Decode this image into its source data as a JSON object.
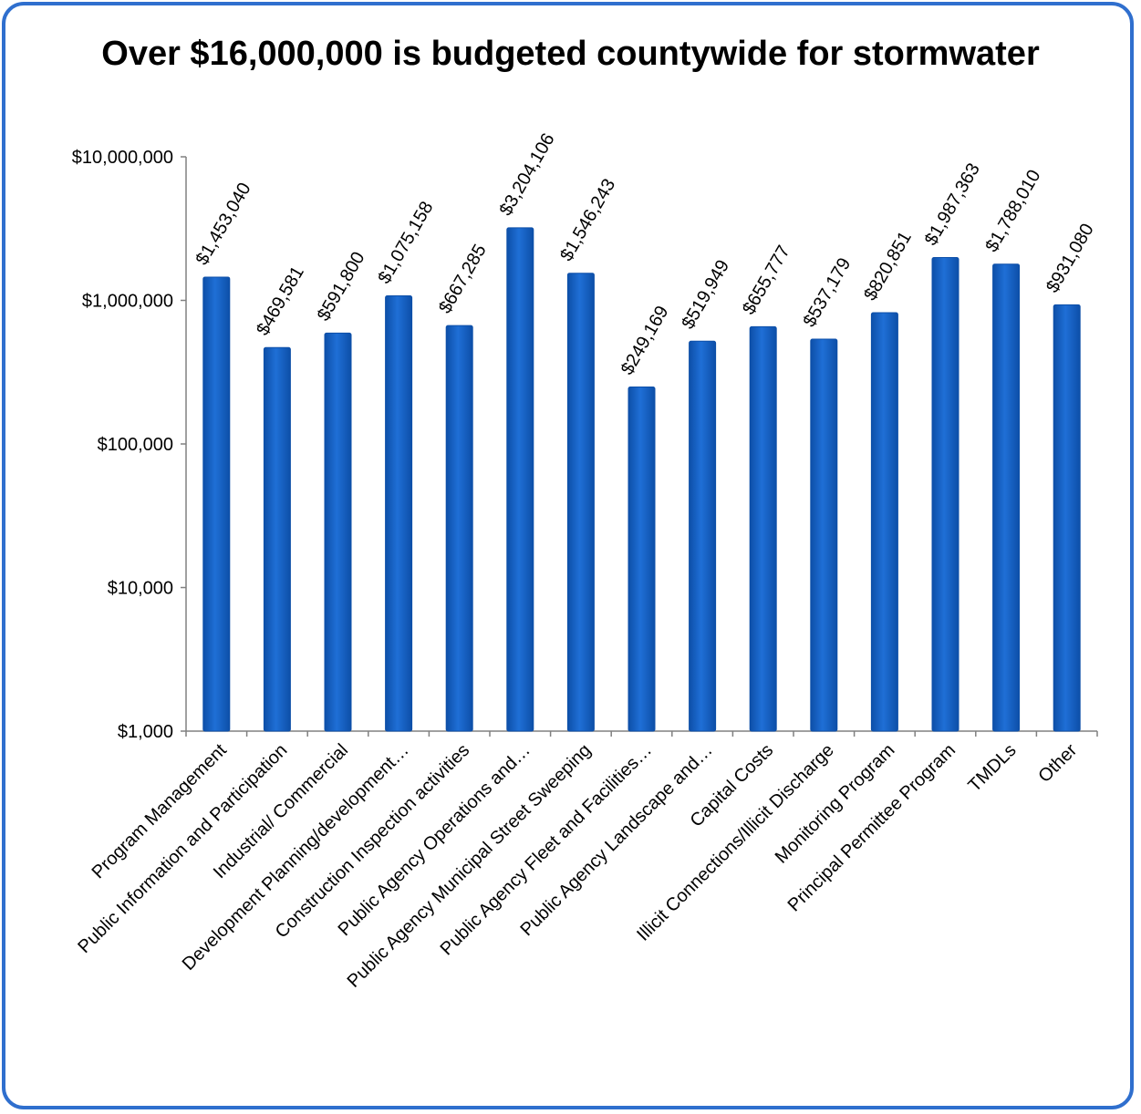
{
  "chart_data": {
    "type": "bar",
    "title": "Over $16,000,000 is budgeted countywide for stormwater",
    "xlabel": "",
    "ylabel": "",
    "yscale": "log",
    "ylim": [
      1000,
      10000000
    ],
    "yticks": [
      {
        "value": 1000,
        "label": "$1,000"
      },
      {
        "value": 10000,
        "label": "$10,000"
      },
      {
        "value": 100000,
        "label": "$100,000"
      },
      {
        "value": 1000000,
        "label": "$1,000,000"
      },
      {
        "value": 10000000,
        "label": "$10,000,000"
      }
    ],
    "categories": [
      "Program Management",
      "Public Information and Participation",
      "Industrial/ Commercial",
      "Development Planning/development…",
      "Construction Inspection activities",
      "Public Agency Operations and…",
      "Public Agency Municipal Street Sweeping",
      "Public Agency Fleet and Facilities…",
      "Public Agency Landscape and…",
      "Capital Costs",
      "Illicit Connections/Illicit Discharge",
      "Monitoring Program",
      "Principal Permittee Program",
      "TMDLs",
      "Other"
    ],
    "values": [
      1453040,
      469581,
      591800,
      1075158,
      667285,
      3204106,
      1546243,
      249169,
      519949,
      655777,
      537179,
      820851,
      1987363,
      1788010,
      931080
    ],
    "value_labels": [
      "$1,453,040",
      "$469,581",
      "$591,800",
      "$1,075,158",
      "$667,285",
      "$3,204,106",
      "$1,546,243",
      "$249,169",
      "$519,949",
      "$655,777",
      "$537,179",
      "$820,851",
      "$1,987,363",
      "$1,788,010",
      "$931,080"
    ],
    "grid": false,
    "legend": "none",
    "bar_color": "#1f6fd6",
    "bar_color_dark": "#0d4fa8",
    "frame_color": "#2f6fce"
  }
}
